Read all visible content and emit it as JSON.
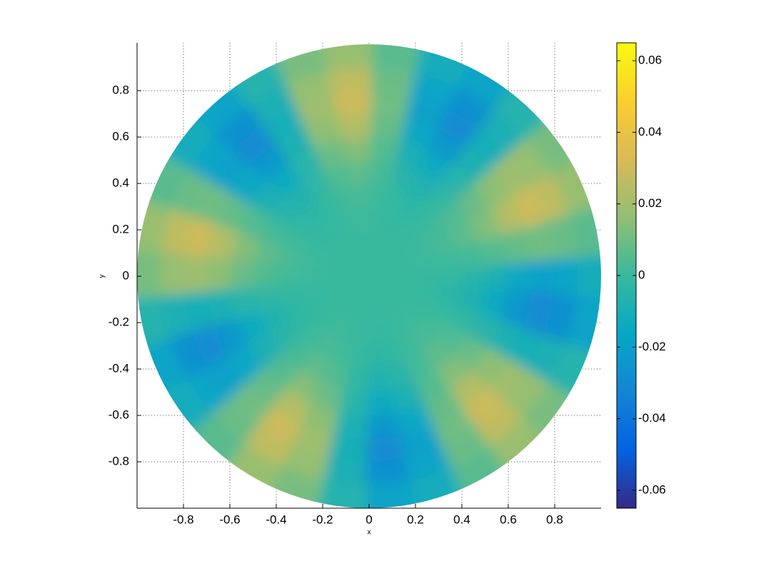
{
  "chart_data": {
    "type": "polar-heatmap",
    "xlabel": "x",
    "ylabel": "y",
    "xlim": [
      -1,
      1
    ],
    "ylim": [
      -1,
      1
    ],
    "xticks": [
      -0.8,
      -0.6,
      -0.4,
      -0.2,
      0,
      0.2,
      0.4,
      0.6,
      0.8
    ],
    "yticks": [
      -0.8,
      -0.6,
      -0.4,
      -0.2,
      0,
      0.2,
      0.4,
      0.6,
      0.8
    ],
    "grid": true,
    "r": [
      0.05,
      0.15,
      0.25,
      0.35,
      0.45,
      0.55,
      0.65,
      0.75,
      0.85,
      0.95
    ],
    "theta": [
      0,
      12,
      24,
      36,
      48,
      60,
      72,
      84,
      96,
      108,
      120,
      132,
      144,
      156,
      168,
      180,
      192,
      204,
      216,
      228,
      240,
      252,
      264,
      276,
      288,
      300,
      312,
      324,
      336,
      348
    ],
    "z": [
      [
        0,
        0,
        0,
        0,
        0,
        0,
        0,
        0,
        0,
        0,
        0,
        0,
        0,
        0,
        0,
        0,
        0,
        0,
        0,
        0,
        0,
        0,
        0,
        0,
        0,
        0,
        0,
        0,
        0,
        0
      ],
      [
        0,
        0,
        0,
        0,
        0,
        0,
        0,
        0,
        0,
        0,
        0,
        0,
        0,
        0,
        0,
        0,
        0,
        0,
        0,
        0,
        0,
        0,
        0,
        0,
        0,
        0,
        0,
        0,
        0,
        0
      ],
      [
        -0.0006,
        0.0003,
        0.001,
        0.0006,
        -0.0003,
        -0.001,
        -0.0006,
        0.0003,
        0.001,
        0.0006,
        -0.0003,
        -0.001,
        -0.0006,
        0.0003,
        0.001,
        0.0006,
        -0.0003,
        -0.001,
        -0.0006,
        0.0003,
        0.001,
        0.0006,
        -0.0003,
        -0.001,
        -0.0006,
        0.0003,
        0.001,
        0.0006,
        -0.0003,
        -0.001
      ],
      [
        -0.0019,
        0.001,
        0.003,
        0.0019,
        -0.001,
        -0.003,
        -0.0019,
        0.001,
        0.003,
        0.0019,
        -0.001,
        -0.003,
        -0.0019,
        0.001,
        0.003,
        0.0019,
        -0.001,
        -0.003,
        -0.0019,
        0.001,
        0.003,
        0.0019,
        -0.001,
        -0.003,
        -0.0019,
        0.001,
        0.003,
        0.0019,
        -0.001,
        -0.003
      ],
      [
        -0.0045,
        0.0024,
        0.0069,
        0.0045,
        -0.0024,
        -0.0069,
        -0.0045,
        0.0024,
        0.0069,
        0.0045,
        -0.0024,
        -0.0069,
        -0.0045,
        0.0024,
        0.0069,
        0.0045,
        -0.0024,
        -0.0069,
        -0.0045,
        0.0024,
        0.0069,
        0.0045,
        -0.0024,
        -0.0069,
        -0.0045,
        0.0024,
        0.0069,
        0.0045,
        -0.0024,
        -0.0069
      ],
      [
        -0.009,
        0.0048,
        0.0138,
        0.009,
        -0.0048,
        -0.0138,
        -0.009,
        0.0048,
        0.0138,
        0.009,
        -0.0048,
        -0.0138,
        -0.009,
        0.0048,
        0.0138,
        0.009,
        -0.0048,
        -0.0138,
        -0.009,
        0.0048,
        0.0138,
        0.009,
        -0.0048,
        -0.0138,
        -0.009,
        0.0048,
        0.0138,
        0.009,
        -0.0048,
        -0.0138
      ],
      [
        -0.0154,
        0.0082,
        0.0236,
        0.0154,
        -0.0082,
        -0.0236,
        -0.0154,
        0.0082,
        0.0236,
        0.0154,
        -0.0082,
        -0.0236,
        -0.0154,
        0.0082,
        0.0236,
        0.0154,
        -0.0082,
        -0.0236,
        -0.0154,
        0.0082,
        0.0236,
        0.0154,
        -0.0082,
        -0.0236,
        -0.0154,
        0.0082,
        0.0236,
        0.0154,
        -0.0082,
        -0.0236
      ],
      [
        -0.0193,
        0.0103,
        0.0296,
        0.0193,
        -0.0103,
        -0.0296,
        -0.0193,
        0.0103,
        0.0296,
        0.0193,
        -0.0103,
        -0.0296,
        -0.0193,
        0.0103,
        0.0296,
        0.0193,
        -0.0103,
        -0.0296,
        -0.0193,
        0.0103,
        0.0296,
        0.0193,
        -0.0103,
        -0.0296,
        -0.0193,
        0.0103,
        0.0296,
        0.0193,
        -0.0103,
        -0.0296
      ],
      [
        -0.0174,
        0.0092,
        0.0266,
        0.0174,
        -0.0092,
        -0.0266,
        -0.0174,
        0.0092,
        0.0266,
        0.0174,
        -0.0092,
        -0.0266,
        -0.0174,
        0.0092,
        0.0266,
        0.0174,
        -0.0092,
        -0.0266,
        -0.0174,
        0.0092,
        0.0266,
        0.0174,
        -0.0092,
        -0.0266,
        -0.0174,
        0.0092,
        0.0266,
        0.0174,
        -0.0092,
        -0.0266
      ],
      [
        -0.0116,
        0.0062,
        0.0177,
        0.0116,
        -0.0062,
        -0.0177,
        -0.0116,
        0.0062,
        0.0177,
        0.0116,
        -0.0062,
        -0.0177,
        -0.0116,
        0.0062,
        0.0177,
        0.0116,
        -0.0062,
        -0.0177,
        -0.0116,
        0.0062,
        0.0177,
        0.0116,
        -0.0062,
        -0.0177,
        -0.0116,
        0.0062,
        0.0177,
        0.0116,
        -0.0062,
        -0.0177
      ]
    ],
    "colormap": [
      "#352a87",
      "#0363e1",
      "#1485d4",
      "#06a7c6",
      "#38b99e",
      "#92bf73",
      "#d9ba56",
      "#fcce2e",
      "#f9fb0e"
    ],
    "colorbar": {
      "clim": [
        -0.065,
        0.065
      ],
      "ticks": [
        -0.06,
        -0.04,
        -0.02,
        0,
        0.02,
        0.04,
        0.06
      ]
    }
  }
}
